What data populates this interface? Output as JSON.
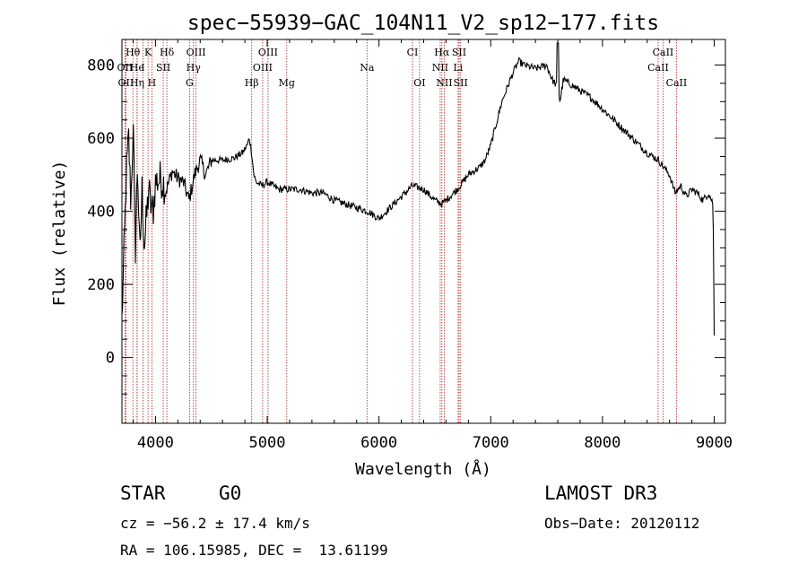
{
  "chart_data": {
    "type": "line",
    "title": "spec−55939−GAC_104N11_V2_sp12−177.fits",
    "xlabel": "Wavelength (Å)",
    "ylabel": "Flux (relative)",
    "xlim": [
      3700,
      9100
    ],
    "ylim": [
      -180,
      870
    ],
    "xticks": [
      4000,
      5000,
      6000,
      7000,
      8000,
      9000
    ],
    "yticks": [
      0,
      200,
      400,
      600,
      800
    ],
    "grid": false,
    "legend": "none",
    "series": [
      {
        "name": "flux",
        "x": [
          3700,
          3720,
          3740,
          3760,
          3780,
          3800,
          3820,
          3840,
          3860,
          3880,
          3900,
          3920,
          3940,
          3960,
          3980,
          4000,
          4050,
          4100,
          4150,
          4200,
          4250,
          4300,
          4350,
          4400,
          4450,
          4500,
          4600,
          4700,
          4780,
          4820,
          4840,
          4861,
          4880,
          4900,
          4950,
          5000,
          5100,
          5200,
          5300,
          5400,
          5500,
          5600,
          5700,
          5800,
          5900,
          6000,
          6100,
          6200,
          6300,
          6400,
          6500,
          6563,
          6600,
          6700,
          6750,
          6800,
          6850,
          6900,
          6950,
          7000,
          7050,
          7100,
          7150,
          7200,
          7250,
          7300,
          7400,
          7500,
          7550,
          7600,
          7620,
          7650,
          7700,
          7800,
          7900,
          8000,
          8100,
          8200,
          8300,
          8400,
          8500,
          8550,
          8600,
          8650,
          8700,
          8750,
          8800,
          8850,
          8900,
          8950,
          8990,
          9000
        ],
        "values": [
          100,
          300,
          500,
          600,
          420,
          640,
          300,
          540,
          260,
          460,
          300,
          380,
          460,
          410,
          400,
          480,
          490,
          460,
          510,
          490,
          480,
          430,
          500,
          540,
          500,
          540,
          540,
          545,
          560,
          580,
          600,
          560,
          500,
          480,
          470,
          480,
          460,
          460,
          460,
          450,
          450,
          430,
          420,
          410,
          400,
          380,
          410,
          440,
          470,
          460,
          430,
          420,
          430,
          460,
          480,
          500,
          510,
          520,
          540,
          580,
          640,
          700,
          740,
          780,
          810,
          800,
          790,
          800,
          760,
          740,
          700,
          760,
          750,
          730,
          710,
          680,
          650,
          620,
          590,
          560,
          540,
          520,
          500,
          450,
          470,
          440,
          460,
          450,
          430,
          450,
          420,
          60
        ]
      }
    ],
    "lines": [
      {
        "label": "Hθ",
        "wl": 3798,
        "row": 0
      },
      {
        "label": "K",
        "wl": 3934,
        "row": 0
      },
      {
        "label": "Hδ",
        "wl": 4102,
        "row": 0
      },
      {
        "label": "OIII",
        "wl": 4363,
        "row": 0
      },
      {
        "label": "OIII",
        "wl": 5007,
        "row": 0
      },
      {
        "label": "CI",
        "wl": 6300,
        "row": 0
      },
      {
        "label": "Hα",
        "wl": 6563,
        "row": 0
      },
      {
        "label": "SII",
        "wl": 6717,
        "row": 0
      },
      {
        "label": "CaII",
        "wl": 8542,
        "row": 0
      },
      {
        "label": "OII",
        "wl": 3727,
        "row": 1
      },
      {
        "label": "He",
        "wl": 3835,
        "row": 1
      },
      {
        "label": "I",
        "wl": 3888,
        "row": 1
      },
      {
        "label": "SII",
        "wl": 4070,
        "row": 1
      },
      {
        "label": "Hγ",
        "wl": 4340,
        "row": 1
      },
      {
        "label": "OIII",
        "wl": 4959,
        "row": 1
      },
      {
        "label": "Na",
        "wl": 5893,
        "row": 1
      },
      {
        "label": "NII",
        "wl": 6548,
        "row": 1
      },
      {
        "label": "Li",
        "wl": 6708,
        "row": 1
      },
      {
        "label": "CaII",
        "wl": 8498,
        "row": 1
      },
      {
        "label": "OII",
        "wl": 3735,
        "row": 2
      },
      {
        "label": "Hη",
        "wl": 3836,
        "row": 2
      },
      {
        "label": "H",
        "wl": 3968,
        "row": 2
      },
      {
        "label": "G",
        "wl": 4305,
        "row": 2
      },
      {
        "label": "Hβ",
        "wl": 4861,
        "row": 2
      },
      {
        "label": "Mg",
        "wl": 5175,
        "row": 2
      },
      {
        "label": "OI",
        "wl": 6363,
        "row": 2
      },
      {
        "label": "NII",
        "wl": 6584,
        "row": 2
      },
      {
        "label": "SII",
        "wl": 6731,
        "row": 2
      },
      {
        "label": "CaII",
        "wl": 8662,
        "row": 2
      }
    ]
  },
  "info": {
    "object_class": "STAR",
    "subclass": "G0",
    "survey": "LAMOST DR3",
    "redshift": "cz = −56.2 ± 17.4 km/s",
    "obs_date": "Obs−Date: 20120112",
    "coords": "RA = 106.15985, DEC =  13.61199"
  }
}
